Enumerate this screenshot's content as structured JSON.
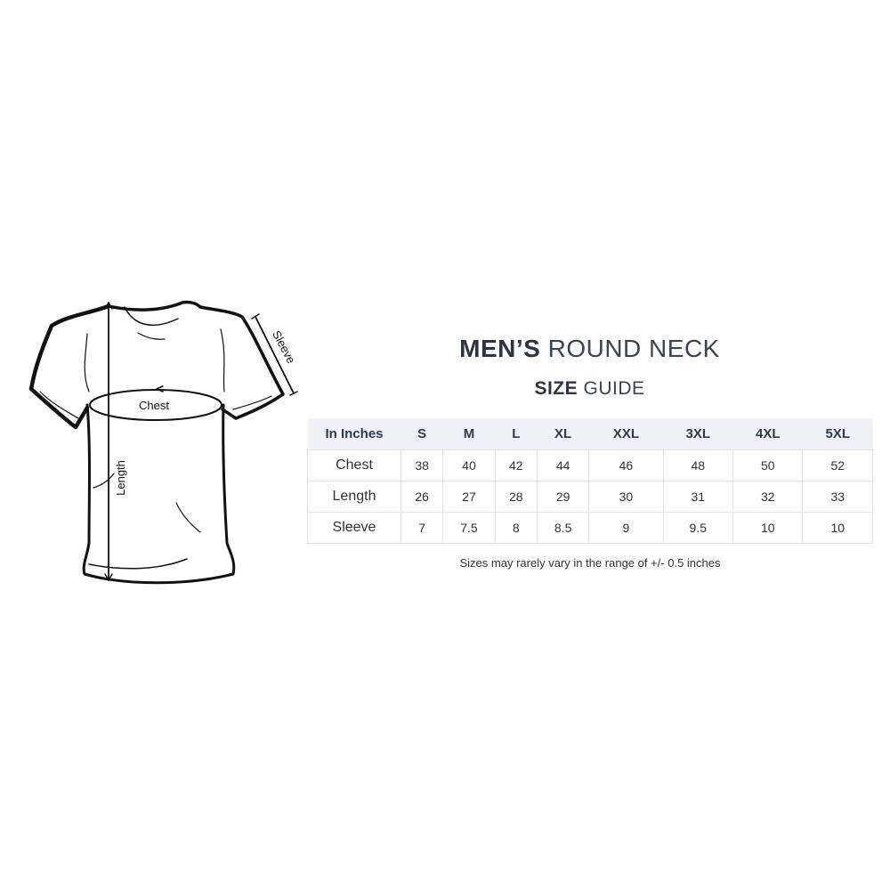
{
  "diagram": {
    "chest_label": "Chest",
    "length_label": "Length",
    "sleeve_label": "Sleeve"
  },
  "title": {
    "line1_bold": "MEN’S",
    "line1_rest": "ROUND NECK",
    "line2_bold": "SIZE",
    "line2_rest": "GUIDE"
  },
  "table": {
    "corner": "In Inches",
    "sizes": [
      "S",
      "M",
      "L",
      "XL",
      "XXL",
      "3XL",
      "4XL",
      "5XL"
    ],
    "rows": [
      {
        "label": "Chest",
        "values": [
          "38",
          "40",
          "42",
          "44",
          "46",
          "48",
          "50",
          "52"
        ]
      },
      {
        "label": "Length",
        "values": [
          "26",
          "27",
          "28",
          "29",
          "30",
          "31",
          "32",
          "33"
        ]
      },
      {
        "label": "Sleeve",
        "values": [
          "7",
          "7.5",
          "8",
          "8.5",
          "9",
          "9.5",
          "10",
          "10"
        ]
      }
    ]
  },
  "note": "Sizes may rarely vary in the range of +/- 0.5 inches",
  "colors": {
    "header_bg": "#eef2f6",
    "title": "#2a3646"
  }
}
